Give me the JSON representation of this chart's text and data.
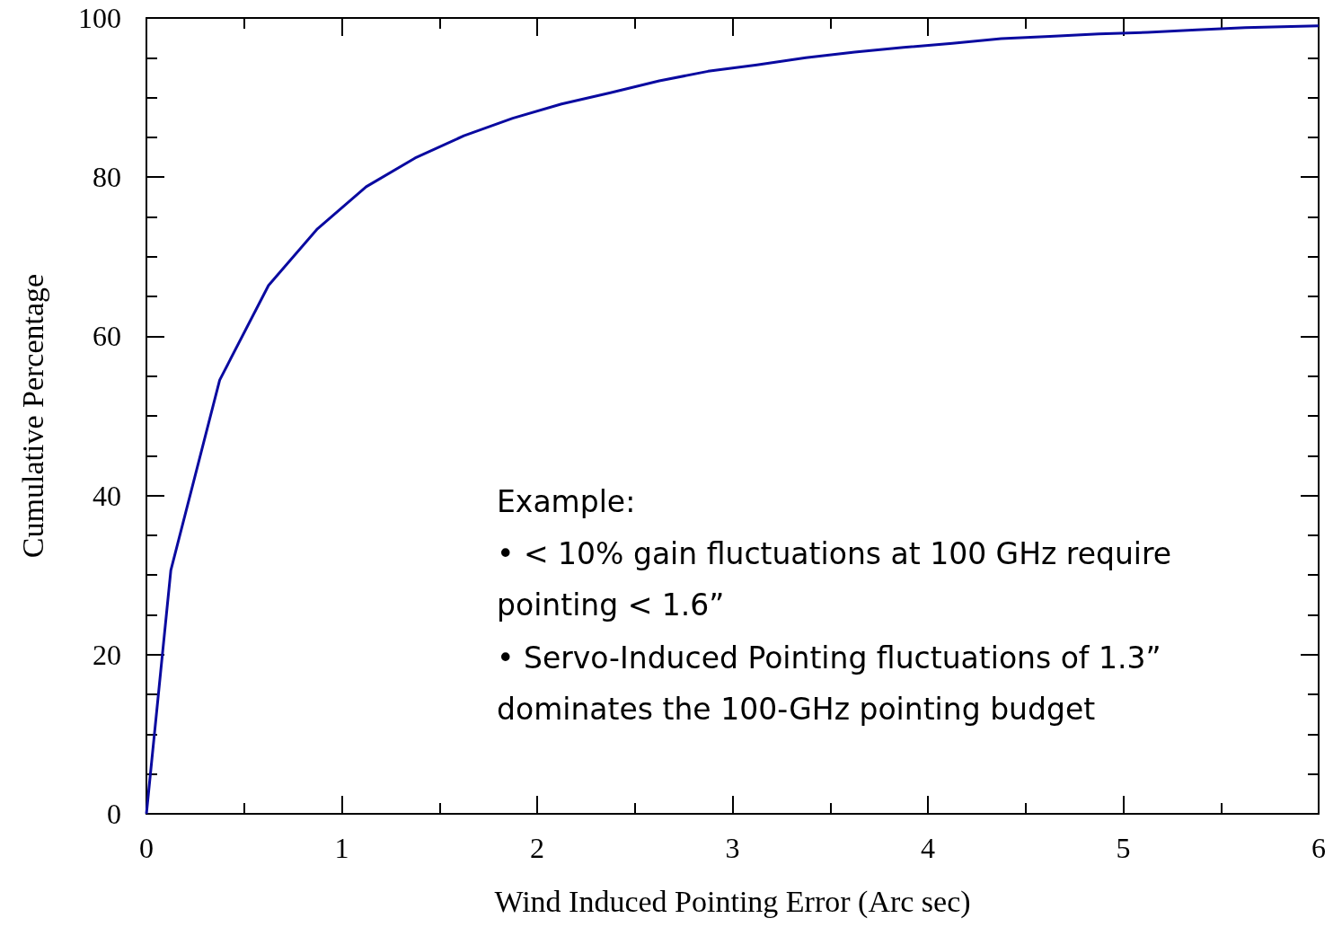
{
  "chart_data": {
    "type": "line",
    "xlabel": "Wind Induced Pointing Error (Arc sec)",
    "ylabel": "Cumulative Percentage",
    "x": [
      0,
      0.125,
      0.375,
      0.625,
      0.875,
      1.125,
      1.375,
      1.625,
      1.875,
      2.125,
      2.375,
      2.625,
      2.875,
      3.125,
      3.375,
      3.625,
      3.875,
      4.125,
      4.375,
      4.625,
      4.875,
      5.125,
      5.375,
      5.625,
      6
    ],
    "series": [
      {
        "color": "#0a0aa0",
        "values": [
          0,
          30.6,
          54.5,
          66.4,
          73.5,
          78.8,
          82.4,
          85.2,
          87.4,
          89.2,
          90.6,
          92.1,
          93.3,
          94.1,
          95.0,
          95.7,
          96.3,
          96.8,
          97.4,
          97.7,
          98.0,
          98.2,
          98.5,
          98.8,
          99.0
        ]
      }
    ],
    "xlim": [
      0,
      6
    ],
    "xticks": [
      0,
      1,
      2,
      3,
      4,
      5,
      6
    ],
    "ylim": [
      0,
      100
    ],
    "yticks": [
      0,
      20,
      40,
      60,
      80,
      100
    ],
    "grid": false,
    "marker": "none",
    "line_style": "solid",
    "annotations": [
      "Example:",
      "• < 10% gain fluctuations at 100 GHz require pointing < 1.6”",
      "• Servo-Induced Pointing fluctuations of 1.3” dominates the 100-GHz pointing budget"
    ]
  }
}
